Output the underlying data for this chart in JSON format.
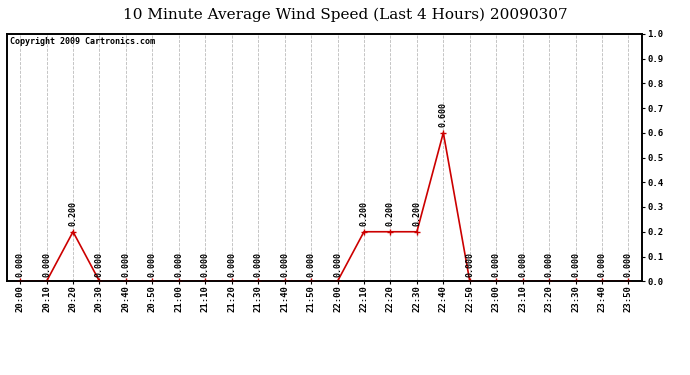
{
  "title": "10 Minute Average Wind Speed (Last 4 Hours) 20090307",
  "copyright_text": "Copyright 2009 Cartronics.com",
  "x_labels": [
    "20:00",
    "20:10",
    "20:20",
    "20:30",
    "20:40",
    "20:50",
    "21:00",
    "21:10",
    "21:20",
    "21:30",
    "21:40",
    "21:50",
    "22:00",
    "22:10",
    "22:20",
    "22:30",
    "22:40",
    "22:50",
    "23:00",
    "23:10",
    "23:20",
    "23:30",
    "23:40",
    "23:50"
  ],
  "y_values": [
    0.0,
    0.0,
    0.2,
    0.0,
    0.0,
    0.0,
    0.0,
    0.0,
    0.0,
    0.0,
    0.0,
    0.0,
    0.0,
    0.2,
    0.2,
    0.2,
    0.6,
    0.0,
    0.0,
    0.0,
    0.0,
    0.0,
    0.0,
    0.0
  ],
  "ylim": [
    0.0,
    1.0
  ],
  "yticks": [
    0.0,
    0.1,
    0.2,
    0.3,
    0.4,
    0.5,
    0.6,
    0.7,
    0.8,
    0.9,
    1.0
  ],
  "ytick_labels": [
    "0.0",
    "0.1",
    "0.2",
    "0.3",
    "0.4",
    "0.5",
    "0.6",
    "0.7",
    "0.8",
    "0.9",
    "1.0"
  ],
  "line_color": "#cc0000",
  "marker_color": "#cc0000",
  "grid_color": "#bbbbbb",
  "bg_color": "#ffffff",
  "title_fontsize": 11,
  "annotation_fontsize": 6,
  "tick_label_fontsize": 6.5,
  "copyright_fontsize": 6,
  "border_color": "#000000"
}
